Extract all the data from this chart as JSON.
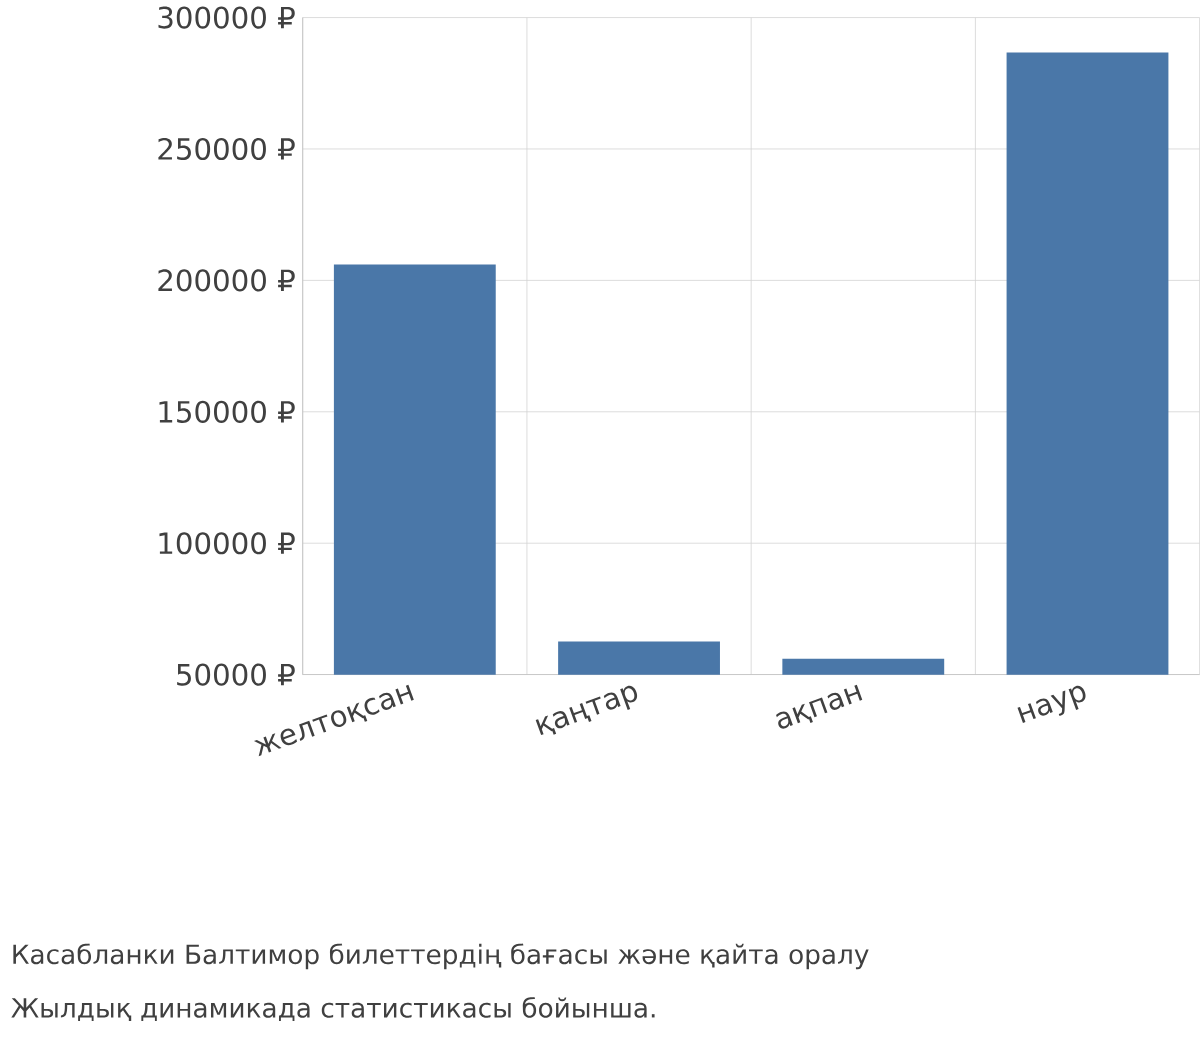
{
  "chart_data": {
    "type": "bar",
    "categories": [
      "желтоқсан",
      "қаңтар",
      "ақпан",
      "наур"
    ],
    "values": [
      206000,
      62600,
      56000,
      286700
    ],
    "color": "#4a77a8",
    "ylim": [
      50000,
      300000
    ],
    "yticks": [
      {
        "value": 50000,
        "label": "50000 ₽"
      },
      {
        "value": 100000,
        "label": "100000 ₽"
      },
      {
        "value": 150000,
        "label": "150000 ₽"
      },
      {
        "value": 200000,
        "label": "200000 ₽"
      },
      {
        "value": 250000,
        "label": "250000 ₽"
      },
      {
        "value": 300000,
        "label": "300000 ₽"
      }
    ],
    "grid": true,
    "annotations": [
      "Касабланки Балтимор билеттердің бағасы және қайта оралу",
      "Жылдық динамикада статистикасы бойынша."
    ]
  }
}
